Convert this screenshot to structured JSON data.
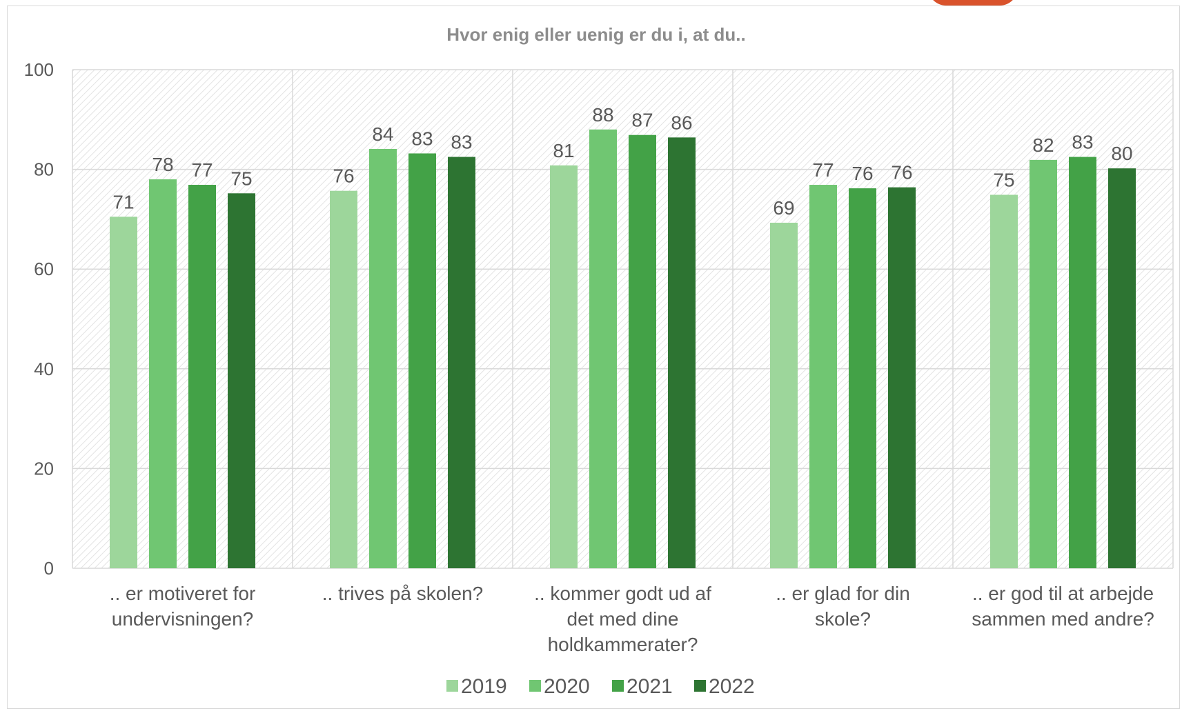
{
  "chart_data": {
    "type": "bar",
    "title": "Hvor enig eller uenig er du i, at du..",
    "xlabel": "",
    "ylabel": "",
    "ylim": [
      0,
      100
    ],
    "yticks": [
      "0",
      "20",
      "40",
      "60",
      "80",
      "100"
    ],
    "grid": true,
    "legend_position": "bottom",
    "categories": [
      [
        ".. er motiveret for",
        "undervisningen?"
      ],
      [
        ".. trives på skolen?"
      ],
      [
        ".. kommer godt ud af",
        "det med dine",
        "holdkammerater?"
      ],
      [
        ".. er glad for din",
        "skole?"
      ],
      [
        ".. er god til at arbejde",
        "sammen med andre?"
      ]
    ],
    "series": [
      {
        "name": "2019",
        "color": "#9dd69b",
        "values": [
          70.5,
          75.7,
          80.8,
          69.3,
          74.9
        ],
        "labels": [
          "71",
          "76",
          "81",
          "69",
          "75"
        ]
      },
      {
        "name": "2020",
        "color": "#70c672",
        "values": [
          78.0,
          84.1,
          88.0,
          76.9,
          81.9
        ],
        "labels": [
          "78",
          "84",
          "88",
          "77",
          "82"
        ]
      },
      {
        "name": "2021",
        "color": "#43a247",
        "values": [
          76.9,
          83.2,
          86.9,
          76.2,
          82.5
        ],
        "labels": [
          "77",
          "83",
          "87",
          "76",
          "83"
        ]
      },
      {
        "name": "2022",
        "color": "#2d7432",
        "values": [
          75.2,
          82.5,
          86.4,
          76.4,
          80.2
        ],
        "labels": [
          "75",
          "83",
          "86",
          "76",
          "80"
        ]
      }
    ]
  }
}
